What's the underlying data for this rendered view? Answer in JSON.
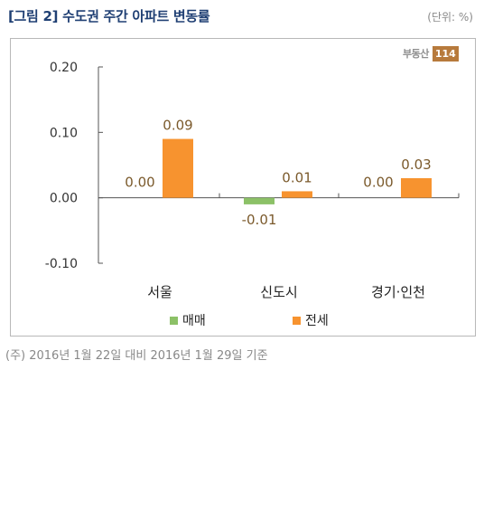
{
  "title": "[그림 2] 수도권 주간 아파트 변동률",
  "unit_label": "(단위: %)",
  "logo": {
    "text": "부동산",
    "number": "114"
  },
  "footnote": "(주) 2016년 1월 22일 대비 2016년 1월 29일 기준",
  "colors": {
    "sale": "#8cc167",
    "jeonse": "#f7932f",
    "axis": "#555555",
    "label_text": "#7b5a2c"
  },
  "chart_data": {
    "type": "bar",
    "title": "수도권 주간 아파트 변동률",
    "xlabel": "",
    "ylabel": "",
    "categories": [
      "서울",
      "신도시",
      "경기·인천"
    ],
    "series": [
      {
        "name": "매매",
        "values": [
          0.0,
          -0.01,
          0.0
        ],
        "labels": [
          "0.00",
          "-0.01",
          "0.00"
        ]
      },
      {
        "name": "전세",
        "values": [
          0.09,
          0.01,
          0.03
        ],
        "labels": [
          "0.09",
          "0.01",
          "0.03"
        ]
      }
    ],
    "ylim": [
      -0.1,
      0.2
    ],
    "yticks": [
      0.2,
      0.1,
      0.0,
      -0.1
    ],
    "ytick_labels": [
      "0.20",
      "0.10",
      "0.00",
      "-0.10"
    ],
    "grid": false,
    "legend": "bottom"
  }
}
